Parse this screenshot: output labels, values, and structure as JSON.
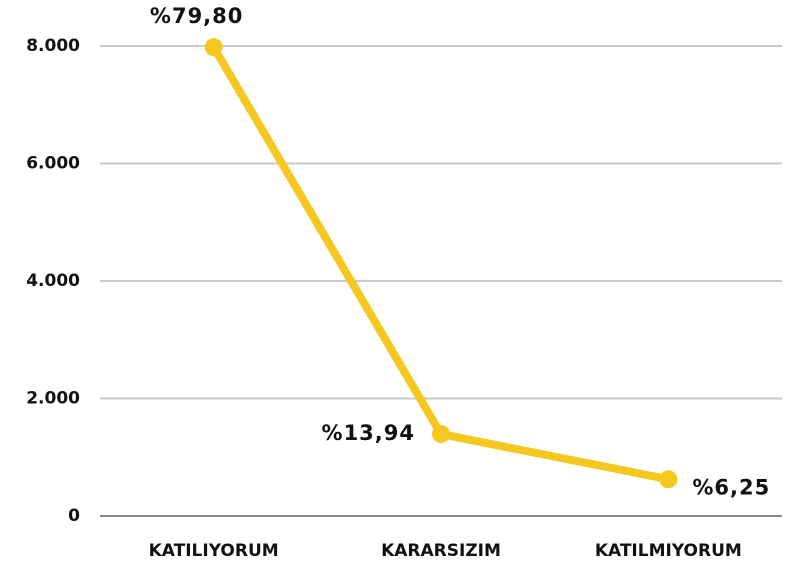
{
  "chart_data": {
    "type": "line",
    "categories": [
      "KATILIYORUM",
      "KARARSIZIM",
      "KATILMIYORUM"
    ],
    "series": [
      {
        "name": null,
        "color": "#f5c71f",
        "values": [
          7980,
          1394,
          625
        ]
      }
    ],
    "point_labels": [
      "%79,80",
      "%13,94",
      "%6,25"
    ],
    "ylim": [
      0,
      8000
    ],
    "yticks": [
      0,
      {
        "value": 2000,
        "label": "2.000"
      },
      {
        "value": 4000,
        "label": "4.000"
      },
      {
        "value": 6000,
        "label": "6.000"
      },
      {
        "value": 8000,
        "label": "8.000"
      }
    ],
    "grid": true
  }
}
